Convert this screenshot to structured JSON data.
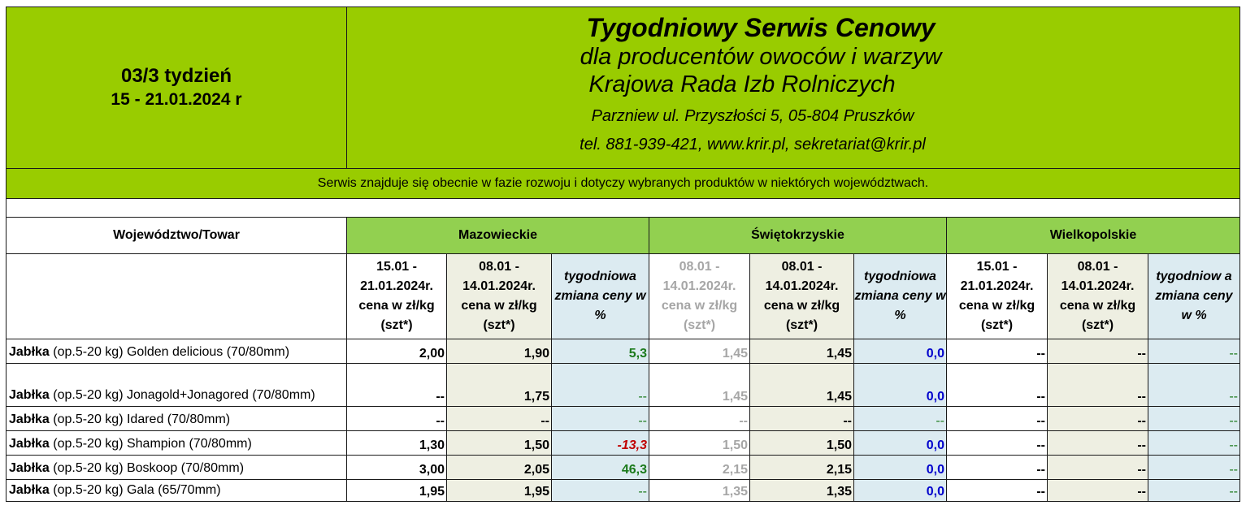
{
  "header": {
    "week": "03/3 tydzień",
    "dates": "15 - 21.01.2024 r",
    "title": "Tygodniowy Serwis Cenowy",
    "subtitle": "dla producentów owoców i warzyw",
    "org": "Krajowa Rada Izb Rolniczych",
    "address": "Parzniew ul. Przyszłości 5, 05-804 Pruszków",
    "contact": "tel. 881-939-421, www.krir.pl, sekretariat@krir.pl"
  },
  "notice": "Serwis znajduje się obecnie w fazie rozwoju i dotyczy wybranych produktów w niektórych województwach.",
  "table": {
    "region_header": "Województwo/Towar",
    "regions": [
      "Mazowieckie",
      "Świętokrzyskie",
      "Wielkopolskie"
    ],
    "columns": [
      "15.01 - 21.01.2024r. cena w zł/kg (szt*)",
      "08.01 - 14.01.2024r. cena w zł/kg (szt*)",
      "tygodniowa zmiana ceny w %",
      "08.01 - 14.01.2024r. cena w zł/kg (szt*)",
      "08.01 - 14.01.2024r. cena w zł/kg (szt*)",
      "tygodniowa zmiana ceny w %",
      "15.01 - 21.01.2024r. cena w zł/kg (szt*)",
      "08.01 - 14.01.2024r. cena w zł/kg (szt*)",
      "tygodniow a zmiana ceny w %"
    ],
    "rows": [
      {
        "bold": "Jabłka",
        "rest": " (op.5-20 kg) Golden delicious (70/80mm)",
        "values": [
          "2,00",
          "1,90",
          "5,3",
          "1,45",
          "1,45",
          "0,0",
          "--",
          "--",
          "--"
        ]
      },
      {
        "bold": "Jabłka",
        "rest": " (op.5-20 kg) Jonagold+Jonagored (70/80mm)",
        "values": [
          "--",
          "1,75",
          "--",
          "1,45",
          "1,45",
          "0,0",
          "--",
          "--",
          "--"
        ]
      },
      {
        "bold": "Jabłka",
        "rest": " (op.5-20 kg) Idared (70/80mm)",
        "values": [
          "--",
          "--",
          "--",
          "--",
          "--",
          "--",
          "--",
          "--",
          "--"
        ]
      },
      {
        "bold": "Jabłka",
        "rest": " (op.5-20 kg) Shampion (70/80mm)",
        "values": [
          "1,30",
          "1,50",
          "-13,3",
          "1,50",
          "1,50",
          "0,0",
          "--",
          "--",
          "--"
        ]
      },
      {
        "bold": "Jabłka",
        "rest": " (op.5-20 kg) Boskoop (70/80mm)",
        "values": [
          "3,00",
          "2,05",
          "46,3",
          "2,15",
          "2,15",
          "0,0",
          "--",
          "--",
          "--"
        ]
      },
      {
        "bold": "Jabłka",
        "rest": " (op.5-20 kg) Gala (65/70mm)",
        "values": [
          "1,95",
          "1,95",
          "--",
          "1,35",
          "1,35",
          "0,0",
          "--",
          "--",
          "--"
        ]
      }
    ]
  },
  "colors": {
    "header_green": "#99cc00",
    "region_green": "#92d050",
    "price_bg": "#eeefe2",
    "change_bg": "#dcebf1",
    "positive": "#1b7a1b",
    "negative": "#c00000",
    "zero": "#0000cc",
    "muted": "#a6a6a6"
  }
}
